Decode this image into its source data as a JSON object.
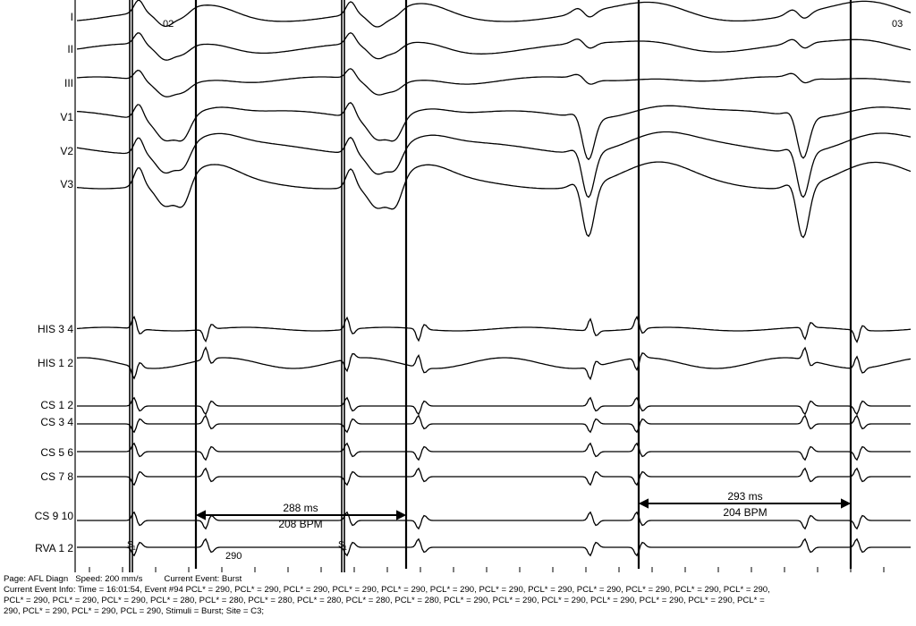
{
  "beat_markers": [
    "02",
    "03"
  ],
  "leads": [
    "I",
    "II",
    "III",
    "V1",
    "V2",
    "V3",
    "HIS 3 4",
    "HIS 1 2",
    "CS 1 2",
    "CS 3 4",
    "CS 5 6",
    "CS 7 8",
    "CS 9 10",
    "RVA 1 2"
  ],
  "stim_marker": "S",
  "stim_marker_sub": "1",
  "measurement_1": {
    "ms": "288 ms",
    "bpm": "208 BPM"
  },
  "measurement_2": {
    "ms": "293 ms",
    "bpm": "204 BPM"
  },
  "stim_annotation": "290",
  "footer": {
    "page": "Page: AFL Diagn",
    "speed": "Speed: 200 mm/s",
    "current_event": "Current Event: Burst",
    "line2": "Current Event Info: Time = 16:01:54,  Event #94 PCL* = 290,  PCL* = 290,  PCL* = 290,  PCL* = 290,  PCL* = 290,  PCL* = 290,  PCL* = 290,  PCL* = 290,  PCL* = 290,  PCL* = 290,  PCL* = 290,  PCL* = 290,",
    "line3": "PCL* = 290,  PCL* = 290,  PCL* = 290,  PCL* = 280,  PCL* = 280,  PCL* = 280,  PCL* = 280,  PCL* = 280,  PCL* = 280,  PCL* = 290,  PCL* = 290,  PCL* = 290,  PCL* = 290,  PCL* = 290,  PCL* = 290,  PCL* =",
    "line4": "290,  PCL* = 290,  PCL* = 290,  PCL = 290,    Stimuli = Burst;  Site = C3;"
  }
}
